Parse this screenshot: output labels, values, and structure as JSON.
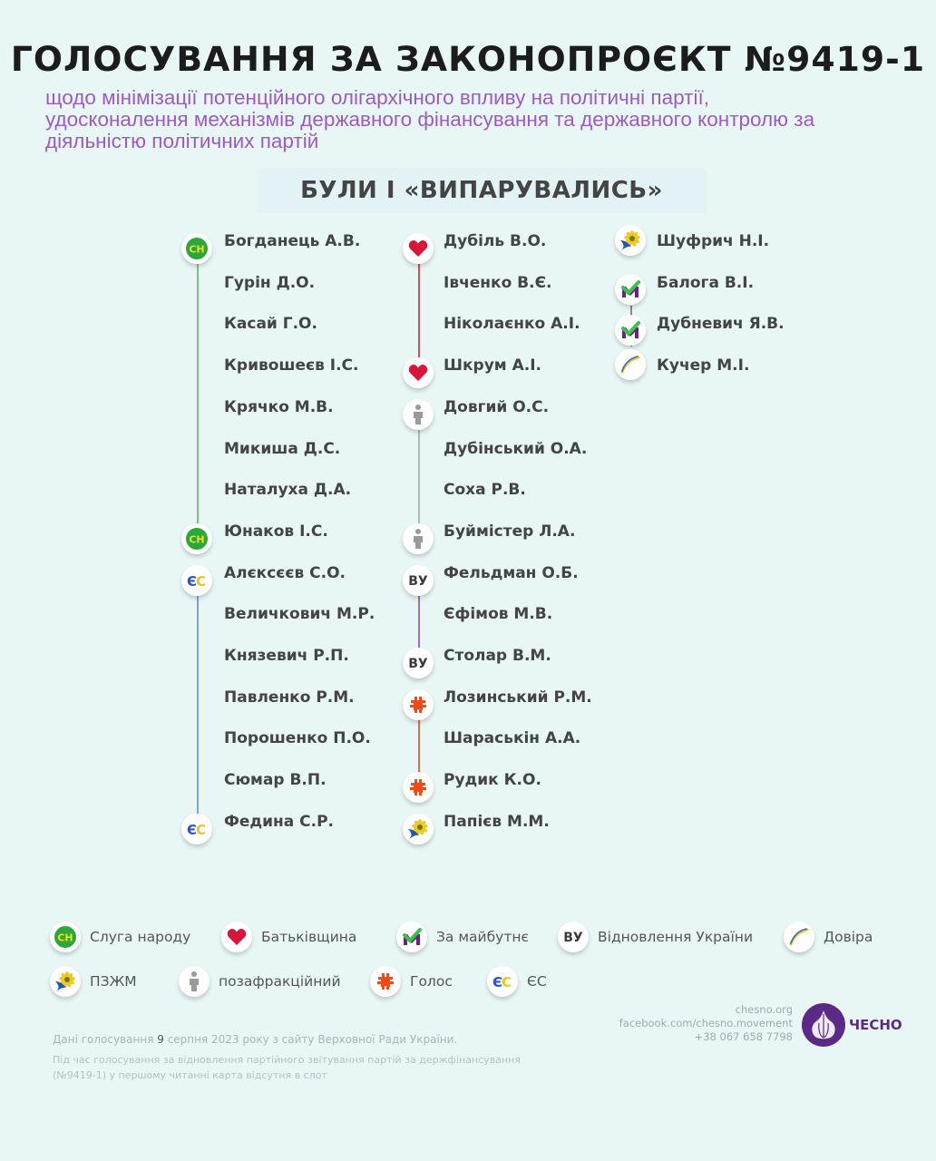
{
  "header": {
    "title": "ГОЛОСУВАННЯ ЗА ЗАКОНОПРОЄКТ №9419-1",
    "subtitle_lines": [
      "щодо мінімізації потенційного олігархічного впливу на політичні партії,",
      "удосконалення механізмів державного фінансування та державного контролю за",
      "діяльністю політичних партій"
    ]
  },
  "section": {
    "title": "БУЛИ І «ВИПАРУВАЛИСЬ»"
  },
  "colors": {
    "background": "#e8f6f6",
    "title": "#1c1c1c",
    "subtitle": "#9b5bc4",
    "servant": "#2aa83a",
    "servant_text": "#f2dd1e",
    "batkivshchyna": "#d6173a",
    "nonfaction": "#9a9a9a",
    "restoration": "#3b3b3b",
    "restoration_line": "#9a70c0",
    "holos": "#f04a17",
    "es_blue": "#2a55c8",
    "es_yellow": "#f1c21b",
    "future_green": "#3cc24a",
    "future_purple": "#6b1f8a",
    "chesno": "#5b2a86"
  },
  "columns": [
    {
      "groups": [
        {
          "party": "servant",
          "members": [
            "Богданець А.В.",
            "Гурін Д.О.",
            "Касай Г.О.",
            "Кривошеєв І.С.",
            "Крячко М.В.",
            "Микиша Д.С.",
            "Наталуха Д.А.",
            "Юнаков І.С."
          ]
        },
        {
          "party": "es",
          "members": [
            "Алєксєєв С.О.",
            "Величкович М.Р.",
            "Князевич Р.П.",
            "Павленко Р.М.",
            "Порошенко П.О.",
            "Сюмар В.П.",
            "Федина С.Р."
          ]
        }
      ]
    },
    {
      "groups": [
        {
          "party": "batkivshchyna",
          "members": [
            "Дубіль В.О.",
            "Івченко В.Є.",
            "Ніколаєнко А.І.",
            "Шкрум А.І."
          ]
        },
        {
          "party": "nonfaction",
          "members": [
            "Довгий О.С.",
            "Дубінський О.А.",
            "Соха Р.В.",
            "Буймістер Л.А."
          ]
        },
        {
          "party": "restoration",
          "members": [
            "Фельдман О.Б.",
            "Єфімов М.В.",
            "Столар В.М."
          ]
        },
        {
          "party": "holos",
          "members": [
            "Лозинський Р.М.",
            "Шараськін А.А.",
            "Рудик К.О."
          ]
        },
        {
          "party": "pzzhm",
          "members": [
            "Папієв М.М."
          ]
        }
      ]
    },
    {
      "groups": [
        {
          "party": "pzzhm",
          "members": [
            "Шуфрич Н.І."
          ]
        },
        {
          "party": "future",
          "members": [
            "Балога В.І.",
            "Дубневич Я.В."
          ]
        },
        {
          "party": "dovira",
          "members": [
            "Кучер М.І."
          ]
        }
      ]
    }
  ],
  "legend": [
    {
      "party": "servant",
      "icon": "servant-of-people-icon",
      "label": "Слуга народу"
    },
    {
      "party": "batkivshchyna",
      "icon": "heart-icon",
      "label": "Батьківщина"
    },
    {
      "party": "future",
      "icon": "m-checkmark-icon",
      "label": "За майбутнє"
    },
    {
      "party": "restoration",
      "icon": "vu-icon",
      "label": "Відновлення України"
    },
    {
      "party": "dovira",
      "icon": "arc-icon",
      "label": "Довіра"
    },
    {
      "party": "pzzhm",
      "icon": "sunflower-icon",
      "label": "ПЗЖМ"
    },
    {
      "party": "nonfaction",
      "icon": "person-icon",
      "label": "позафракційний"
    },
    {
      "party": "holos",
      "icon": "holos-icon",
      "label": "Голос"
    },
    {
      "party": "es",
      "icon": "es-icon",
      "label": "ЄС"
    }
  ],
  "footer": {
    "note_prefix": "Дані голосування ",
    "note_day": "9",
    "note_suffix": " серпня 2023 року з сайту Верховної Ради України.",
    "note2": "Під час голосування за відновлення партійного звітування партій за держфінансування (№9419-1) у першому читанні карта відсутня в слот",
    "contacts": [
      "chesno.org",
      "facebook.com/chesno.movement",
      "+38 067 658 7798"
    ],
    "logo_text": "ЧЕСНО"
  },
  "badge_labels": {
    "servant": "СН",
    "restoration": "ВУ",
    "es_e": "Є",
    "es_c": "С"
  }
}
